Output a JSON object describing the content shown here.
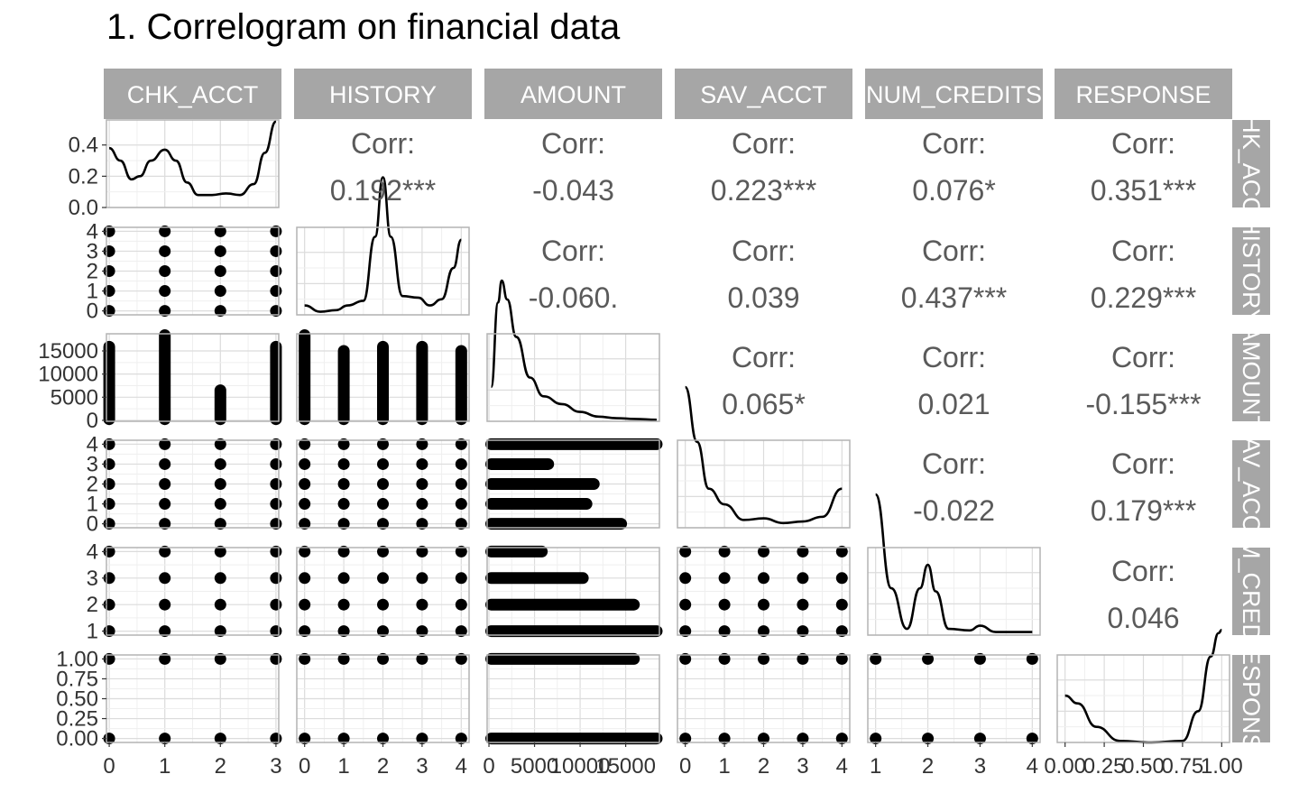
{
  "title": "1. Correlogram on financial data",
  "chart_data": {
    "type": "scatter-matrix",
    "variables": [
      "CHK_ACCT",
      "HISTORY",
      "AMOUNT",
      "SAV_ACCT",
      "NUM_CREDITS",
      "RESPONSE"
    ],
    "colors": {
      "strip": "#a6a6a6",
      "panel_border": "#b3b3b3",
      "grid_major": "#dcdcdc",
      "grid_minor": "#efefef",
      "points": "#000000",
      "corr_text": "#5a5a5a"
    },
    "axes": {
      "CHK_ACCT": {
        "range": [
          -0.05,
          3.05
        ],
        "ticks": [
          0,
          1,
          2,
          3
        ],
        "tick_labels": [
          "0",
          "1",
          "2",
          "3"
        ]
      },
      "HISTORY": {
        "range": [
          -0.2,
          4.2
        ],
        "ticks": [
          0,
          1,
          2,
          3,
          4
        ],
        "tick_labels": [
          "0",
          "1",
          "2",
          "3",
          "4"
        ]
      },
      "AMOUNT": {
        "range": [
          -200,
          18700
        ],
        "ticks": [
          0,
          5000,
          10000,
          15000
        ],
        "tick_labels": [
          "0",
          "5000",
          "10000",
          "15000"
        ]
      },
      "SAV_ACCT": {
        "range": [
          -0.2,
          4.2
        ],
        "ticks": [
          0,
          1,
          2,
          3,
          4
        ],
        "tick_labels": [
          "0",
          "1",
          "2",
          "3",
          "4"
        ]
      },
      "NUM_CREDITS": {
        "range": [
          0.85,
          4.15
        ],
        "ticks": [
          1,
          2,
          3,
          4
        ],
        "tick_labels": [
          "1",
          "2",
          "3",
          "4"
        ]
      },
      "RESPONSE": {
        "range": [
          -0.05,
          1.05
        ],
        "ticks": [
          0,
          0.25,
          0.5,
          0.75,
          1
        ],
        "tick_labels": [
          "0.00",
          "0.25",
          "0.50",
          "0.75",
          "1.00"
        ]
      }
    },
    "density_axis": {
      "range": [
        0,
        0.56
      ],
      "ticks": [
        0,
        0.2,
        0.4
      ],
      "tick_labels": [
        "0.0",
        "0.2",
        "0.4"
      ]
    },
    "corr_label": "Corr:",
    "correlations": [
      {
        "row": 0,
        "col": 1,
        "value": "0.192***"
      },
      {
        "row": 0,
        "col": 2,
        "value": "-0.043"
      },
      {
        "row": 0,
        "col": 3,
        "value": "0.223***"
      },
      {
        "row": 0,
        "col": 4,
        "value": "0.076*"
      },
      {
        "row": 0,
        "col": 5,
        "value": "0.351***"
      },
      {
        "row": 1,
        "col": 2,
        "value": "-0.060."
      },
      {
        "row": 1,
        "col": 3,
        "value": "0.039"
      },
      {
        "row": 1,
        "col": 4,
        "value": "0.437***"
      },
      {
        "row": 1,
        "col": 5,
        "value": "0.229***"
      },
      {
        "row": 2,
        "col": 3,
        "value": "0.065*"
      },
      {
        "row": 2,
        "col": 4,
        "value": "0.021"
      },
      {
        "row": 2,
        "col": 5,
        "value": "-0.155***"
      },
      {
        "row": 3,
        "col": 4,
        "value": "-0.022"
      },
      {
        "row": 3,
        "col": 5,
        "value": "0.179***"
      },
      {
        "row": 4,
        "col": 5,
        "value": "0.046"
      }
    ],
    "densities": {
      "CHK_ACCT": [
        [
          0,
          0.38
        ],
        [
          0.2,
          0.3
        ],
        [
          0.4,
          0.18
        ],
        [
          0.55,
          0.2
        ],
        [
          0.75,
          0.3
        ],
        [
          1,
          0.37
        ],
        [
          1.2,
          0.3
        ],
        [
          1.4,
          0.16
        ],
        [
          1.6,
          0.08
        ],
        [
          1.85,
          0.08
        ],
        [
          2.1,
          0.09
        ],
        [
          2.35,
          0.08
        ],
        [
          2.6,
          0.15
        ],
        [
          2.8,
          0.35
        ],
        [
          3,
          0.55
        ]
      ],
      "HISTORY": [
        [
          0,
          0.06
        ],
        [
          0.4,
          0.02
        ],
        [
          0.8,
          0.03
        ],
        [
          1.1,
          0.06
        ],
        [
          1.5,
          0.09
        ],
        [
          1.8,
          0.5
        ],
        [
          2,
          0.88
        ],
        [
          2.2,
          0.5
        ],
        [
          2.5,
          0.12
        ],
        [
          2.9,
          0.11
        ],
        [
          3.2,
          0.06
        ],
        [
          3.5,
          0.1
        ],
        [
          3.8,
          0.3
        ],
        [
          4,
          0.48
        ]
      ],
      "AMOUNT": [
        [
          250,
          0.22
        ],
        [
          1000,
          0.76
        ],
        [
          1400,
          0.9
        ],
        [
          2000,
          0.78
        ],
        [
          3000,
          0.54
        ],
        [
          4500,
          0.28
        ],
        [
          6000,
          0.16
        ],
        [
          8000,
          0.11
        ],
        [
          10000,
          0.06
        ],
        [
          12000,
          0.03
        ],
        [
          14000,
          0.02
        ],
        [
          16000,
          0.015
        ],
        [
          18400,
          0.01
        ]
      ],
      "SAV_ACCT": [
        [
          0,
          0.9
        ],
        [
          0.3,
          0.55
        ],
        [
          0.6,
          0.25
        ],
        [
          1,
          0.15
        ],
        [
          1.5,
          0.05
        ],
        [
          2,
          0.06
        ],
        [
          2.5,
          0.03
        ],
        [
          3,
          0.04
        ],
        [
          3.5,
          0.07
        ],
        [
          4,
          0.25
        ]
      ],
      "NUM_CREDITS": [
        [
          1,
          0.9
        ],
        [
          1.3,
          0.3
        ],
        [
          1.6,
          0.04
        ],
        [
          1.85,
          0.3
        ],
        [
          2,
          0.45
        ],
        [
          2.15,
          0.28
        ],
        [
          2.4,
          0.04
        ],
        [
          2.8,
          0.03
        ],
        [
          3,
          0.06
        ],
        [
          3.3,
          0.02
        ],
        [
          4,
          0.02
        ]
      ],
      "RESPONSE": [
        [
          0,
          0.3
        ],
        [
          0.08,
          0.25
        ],
        [
          0.2,
          0.1
        ],
        [
          0.35,
          0.01
        ],
        [
          0.55,
          0.0
        ],
        [
          0.75,
          0.01
        ],
        [
          0.85,
          0.2
        ],
        [
          0.93,
          0.55
        ],
        [
          0.98,
          0.7
        ],
        [
          1,
          0.72
        ]
      ]
    },
    "scatter_points": {
      "CHK_ACCT": [
        0,
        1,
        2,
        3
      ],
      "HISTORY": [
        0,
        1,
        2,
        3,
        4
      ],
      "SAV_ACCT": [
        0,
        1,
        2,
        3,
        4
      ],
      "NUM_CREDITS": [
        1,
        2,
        3,
        4
      ],
      "RESPONSE": [
        0,
        1
      ]
    },
    "amount_ranges": {
      "by_CHK_ACCT": [
        [
          250,
          15900
        ],
        [
          250,
          18400
        ],
        [
          250,
          6500
        ],
        [
          250,
          15900
        ]
      ],
      "by_HISTORY": [
        [
          250,
          18400
        ],
        [
          250,
          15000
        ],
        [
          250,
          15900
        ],
        [
          250,
          15900
        ],
        [
          250,
          15000
        ]
      ],
      "vs_SAV_ACCT": [
        [
          250,
          14500
        ],
        [
          250,
          10700
        ],
        [
          250,
          11500
        ],
        [
          250,
          6500
        ],
        [
          250,
          18400
        ]
      ],
      "vs_NUM_CREDITS": [
        [
          250,
          18400
        ],
        [
          250,
          15900
        ],
        [
          250,
          10300
        ],
        [
          250,
          5800
        ]
      ],
      "vs_RESPONSE": [
        [
          250,
          18400
        ],
        [
          250,
          15900
        ]
      ]
    }
  }
}
